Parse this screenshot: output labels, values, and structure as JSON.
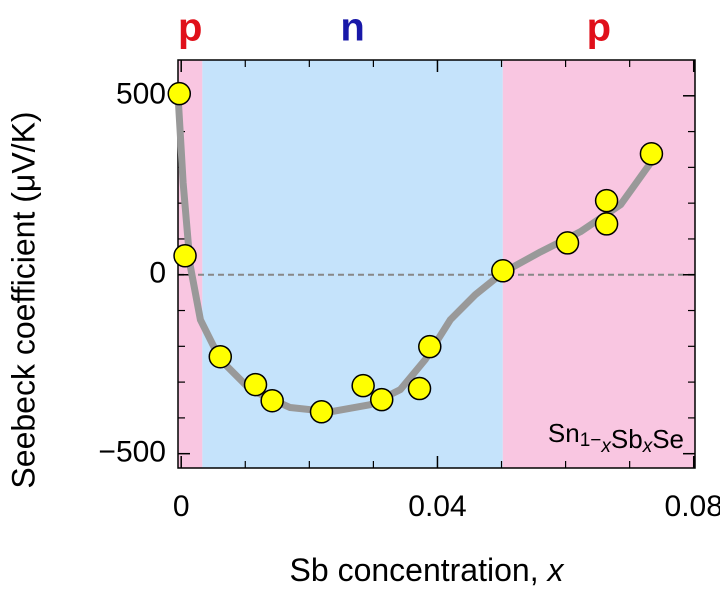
{
  "chart_data": {
    "type": "scatter",
    "xlabel": [
      "Sb concentration, ",
      "x"
    ],
    "ylabel": "Seebeck coefficient (μV/K)",
    "xlim": [
      -0.0005,
      0.0802
    ],
    "ylim": [
      -540,
      600
    ],
    "xticks": [
      0,
      0.04,
      0.08
    ],
    "xminorticks": [
      0.01,
      0.02,
      0.03,
      0.05,
      0.06,
      0.07
    ],
    "yticks": [
      500,
      0,
      {
        "value": -500,
        "label": "−500"
      }
    ],
    "yminorticks": [
      -400,
      -300,
      -200,
      -100,
      100,
      200,
      300,
      400
    ],
    "hline": 0,
    "regions": [
      {
        "label": "p",
        "from": -0.0005,
        "to": 0.0033,
        "color": "#f9c6e1",
        "text_color": "#e0101a"
      },
      {
        "label": "n",
        "from": 0.0033,
        "to": 0.0502,
        "color": "#c5e3fb",
        "text_color": "#1818a8"
      },
      {
        "label": "p",
        "from": 0.0502,
        "to": 0.0802,
        "color": "#f9c6e1",
        "text_color": "#e0101a"
      }
    ],
    "formula": [
      "Sn",
      "1−",
      "x",
      "Sb",
      "x",
      "Se"
    ],
    "color": "#ffff00",
    "x": [
      -0.0003,
      0.0006,
      0.0061,
      0.0116,
      0.0142,
      0.0219,
      0.0284,
      0.0313,
      0.0372,
      0.0388,
      0.0502,
      0.0603,
      0.0664,
      0.0664,
      0.0734
    ],
    "values": [
      506,
      53,
      -229,
      -307,
      -352,
      -383,
      -310,
      -349,
      -318,
      -201,
      11,
      89,
      142,
      207,
      338
    ],
    "trend": {
      "color": "#999999",
      "x": [
        -0.0005,
        0.0003,
        0.0014,
        0.003,
        0.0061,
        0.0108,
        0.017,
        0.0233,
        0.0295,
        0.0342,
        0.0381,
        0.042,
        0.0459,
        0.0502,
        0.0561,
        0.0623,
        0.0686,
        0.0736
      ],
      "values": [
        503,
        257,
        26,
        -126,
        -237,
        -321,
        -371,
        -383,
        -363,
        -321,
        -237,
        -126,
        -56,
        6,
        64,
        120,
        196,
        321
      ]
    }
  }
}
